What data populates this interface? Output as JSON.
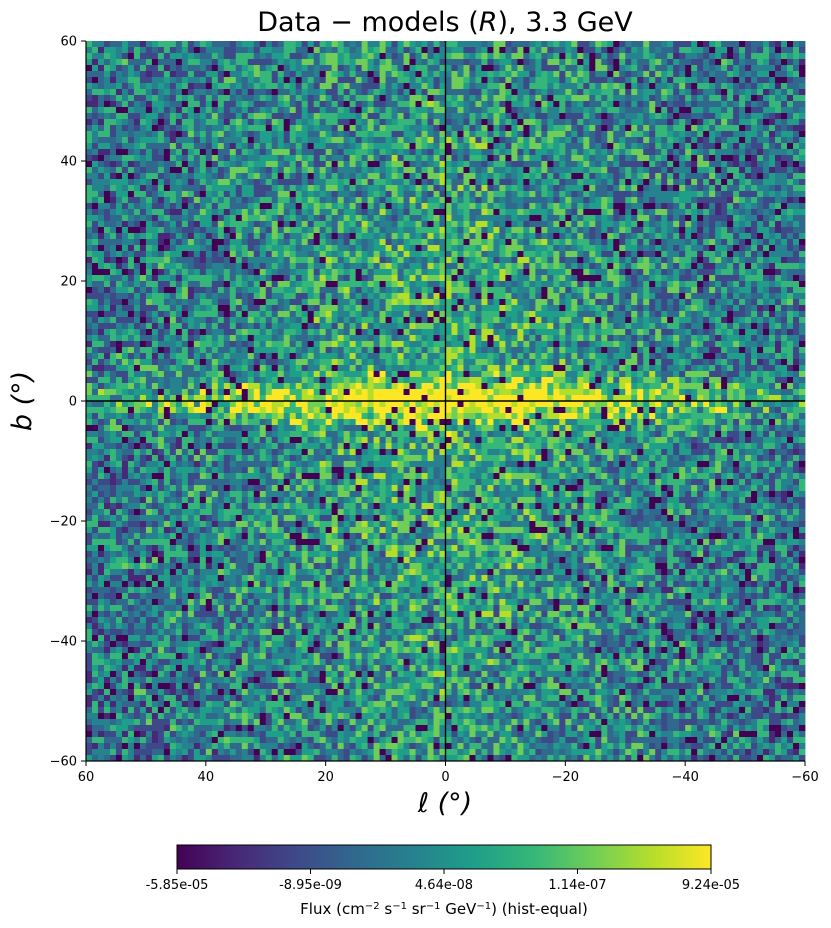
{
  "chart_data": {
    "type": "heatmap",
    "title": "Data − models (R), 3.3 GeV",
    "title_parts": {
      "prefix": "Data − models (",
      "symbol": "R",
      "suffix": "), 3.3 GeV"
    },
    "xlabel": "ℓ (°)",
    "ylabel": "b (°)",
    "xlim": [
      60,
      -60
    ],
    "ylim": [
      -60,
      60
    ],
    "x_ticks": [
      60,
      40,
      20,
      0,
      -20,
      -40,
      -60
    ],
    "y_ticks": [
      -60,
      -40,
      -20,
      0,
      20,
      40,
      60
    ],
    "x_tick_labels": [
      "60",
      "40",
      "20",
      "0",
      "−20",
      "−40",
      "−60"
    ],
    "y_tick_labels": [
      "−60",
      "−40",
      "−20",
      "0",
      "20",
      "40",
      "60"
    ],
    "reference_lines": {
      "l": 0,
      "b": 0
    },
    "grid": false,
    "colormap": "viridis",
    "colorbar": {
      "orientation": "horizontal",
      "placement": "bottom",
      "tick_labels": [
        "-5.85e-05",
        "-8.95e-09",
        "4.64e-08",
        "1.14e-07",
        "9.24e-05"
      ],
      "label": "Flux (cm⁻² s⁻¹ sr⁻¹ GeV⁻¹) (hist-equal)",
      "label_parts": {
        "base": "Flux (cm",
        "e1": "−2",
        "s": " s",
        "e2": "−1",
        "sr": " sr",
        "e3": "−1",
        "gev": " GeV",
        "e4": "−1",
        "end": ") (hist-equal)"
      }
    }
  },
  "colors": {
    "viridis": [
      "#440154",
      "#482878",
      "#3e4989",
      "#31688e",
      "#26828e",
      "#1f9e89",
      "#35b779",
      "#6ece58",
      "#b5de2b",
      "#fde725"
    ],
    "reference_line": "#000000"
  }
}
